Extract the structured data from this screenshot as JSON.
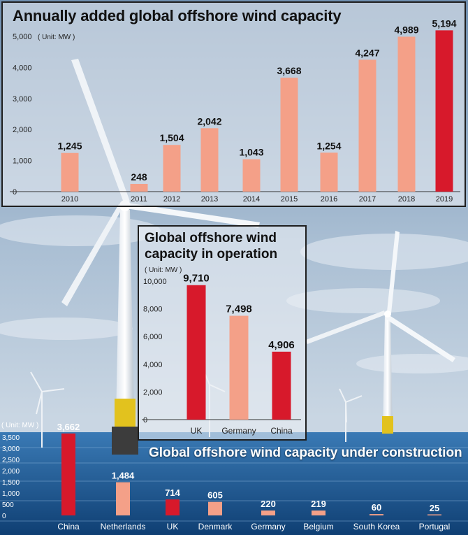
{
  "colors": {
    "highlight": "#d7192b",
    "bar": "#f4a088",
    "sky_top": "#6f8fb0",
    "sea": "#1f5f98"
  },
  "chart_data": [
    {
      "type": "bar",
      "title": "Annually added global offshore wind capacity",
      "unit": "( Unit: MW )",
      "categories": [
        "2010",
        "2011",
        "2012",
        "2013",
        "2014",
        "2015",
        "2016",
        "2017",
        "2018",
        "2019"
      ],
      "values": [
        1245,
        248,
        1504,
        2042,
        1043,
        3668,
        1254,
        4247,
        4989,
        5194
      ],
      "value_labels": [
        "1,245",
        "248",
        "1,504",
        "2,042",
        "1,043",
        "3,668",
        "1,254",
        "4,247",
        "4,989",
        "5,194"
      ],
      "highlight_index": 9,
      "ylim": [
        0,
        5000
      ],
      "yticks": [
        0,
        1000,
        2000,
        3000,
        4000,
        5000
      ],
      "ytick_labels": [
        "0",
        "1,000",
        "2,000",
        "3,000",
        "4,000",
        "5,000"
      ]
    },
    {
      "type": "bar",
      "title": "Global offshore wind capacity in operation",
      "unit": "( Unit: MW )",
      "categories": [
        "UK",
        "Germany",
        "China"
      ],
      "values": [
        9710,
        7498,
        4906
      ],
      "value_labels": [
        "9,710",
        "7,498",
        "4,906"
      ],
      "highlight_indices": [
        0,
        2
      ],
      "ylim": [
        0,
        10000
      ],
      "yticks": [
        0,
        2000,
        4000,
        6000,
        8000,
        10000
      ],
      "ytick_labels": [
        "0",
        "2,000",
        "4,000",
        "6,000",
        "8,000",
        "10,000"
      ]
    },
    {
      "type": "bar",
      "title": "Global offshore wind capacity under construction",
      "unit": "( Unit: MW )",
      "categories": [
        "China",
        "Netherlands",
        "UK",
        "Denmark",
        "Germany",
        "Belgium",
        "South Korea",
        "Portugal"
      ],
      "values": [
        3662,
        1484,
        714,
        605,
        220,
        219,
        60,
        25
      ],
      "value_labels": [
        "3,662",
        "1,484",
        "714",
        "605",
        "220",
        "219",
        "60",
        "25"
      ],
      "highlight_indices": [
        0,
        2
      ],
      "ylim": [
        0,
        3500
      ],
      "yticks": [
        0,
        500,
        1000,
        1500,
        2000,
        2500,
        3000,
        3500
      ],
      "ytick_labels": [
        "0",
        "500",
        "1,000",
        "1,500",
        "2,000",
        "2,500",
        "3,000",
        "3,500"
      ]
    }
  ]
}
